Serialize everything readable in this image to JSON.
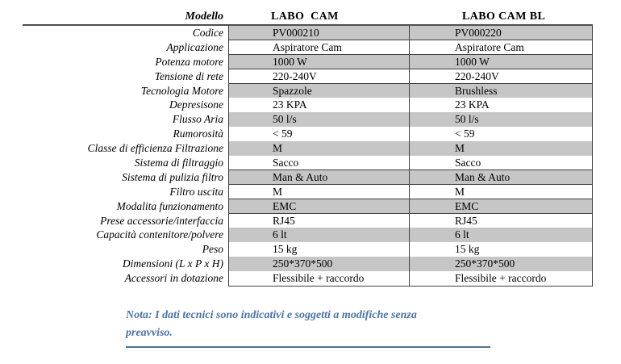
{
  "table": {
    "header": {
      "label": "Modello",
      "col1": "LABO  CAM",
      "col2": "LABO CAM BL"
    },
    "rows": [
      {
        "label": "Codice",
        "col1": "PV000210",
        "col2": "PV000220",
        "shaded": true
      },
      {
        "label": "Applicazione",
        "col1": "Aspiratore Cam",
        "col2": "Aspiratore Cam",
        "shaded": false
      },
      {
        "label": "Potenza motore",
        "col1": "1000 W",
        "col2": "1000 W",
        "shaded": true
      },
      {
        "label": "Tensione di rete",
        "col1": "220-240V",
        "col2": "220-240V",
        "shaded": false
      },
      {
        "label": "Tecnologia Motore",
        "col1": "Spazzole",
        "col2": "Brushless",
        "shaded": true
      },
      {
        "label": "Depresisone",
        "col1": "23 KPA",
        "col2": "23 KPA",
        "shaded": false
      },
      {
        "label": "Flusso Aria",
        "col1": "50 l/s",
        "col2": "50 l/s",
        "shaded": true
      },
      {
        "label": "Rumorosità",
        "col1": "< 59",
        "col2": "< 59",
        "shaded": false
      },
      {
        "label": "Classe di efficienza Filtrazione",
        "col1": "M",
        "col2": "M",
        "shaded": true
      },
      {
        "label": "Sistema di filtraggio",
        "col1": "Sacco",
        "col2": "Sacco",
        "shaded": false
      },
      {
        "label": "Sistema di pulizia filtro",
        "col1": "Man & Auto",
        "col2": "Man & Auto",
        "shaded": true
      },
      {
        "label": "Filtro uscita",
        "col1": "M",
        "col2": "M",
        "shaded": false
      },
      {
        "label": "Modalita funzionamento",
        "col1": "EMC",
        "col2": "EMC",
        "shaded": true
      },
      {
        "label": "Prese accessorie/interfaccia",
        "col1": "RJ45",
        "col2": "RJ45",
        "shaded": false
      },
      {
        "label": "Capacità contenitore/polvere",
        "col1": "6 lt",
        "col2": "6 lt",
        "shaded": true
      },
      {
        "label": "Peso",
        "col1": "15 kg",
        "col2": "15 kg",
        "shaded": false
      },
      {
        "label": "Dimensioni (L x P x H)",
        "col1": "250*370*500",
        "col2": "250*370*500",
        "shaded": true
      },
      {
        "label": "Accessori in dotazione",
        "col1": "Flessibile + raccordo",
        "col2": "Flessibile + raccordo",
        "shaded": false
      }
    ]
  },
  "note": {
    "line1": "Nota: I dati tecnici sono indicativi e soggetti a modifiche senza",
    "line2": "preavviso."
  },
  "colors": {
    "shaded_cell": "#c6c6c6",
    "cell_border": "#3f3f3f",
    "header_rule": "#4f4f4f",
    "note_text": "#4a74a8",
    "note_underline": "#50718f"
  }
}
